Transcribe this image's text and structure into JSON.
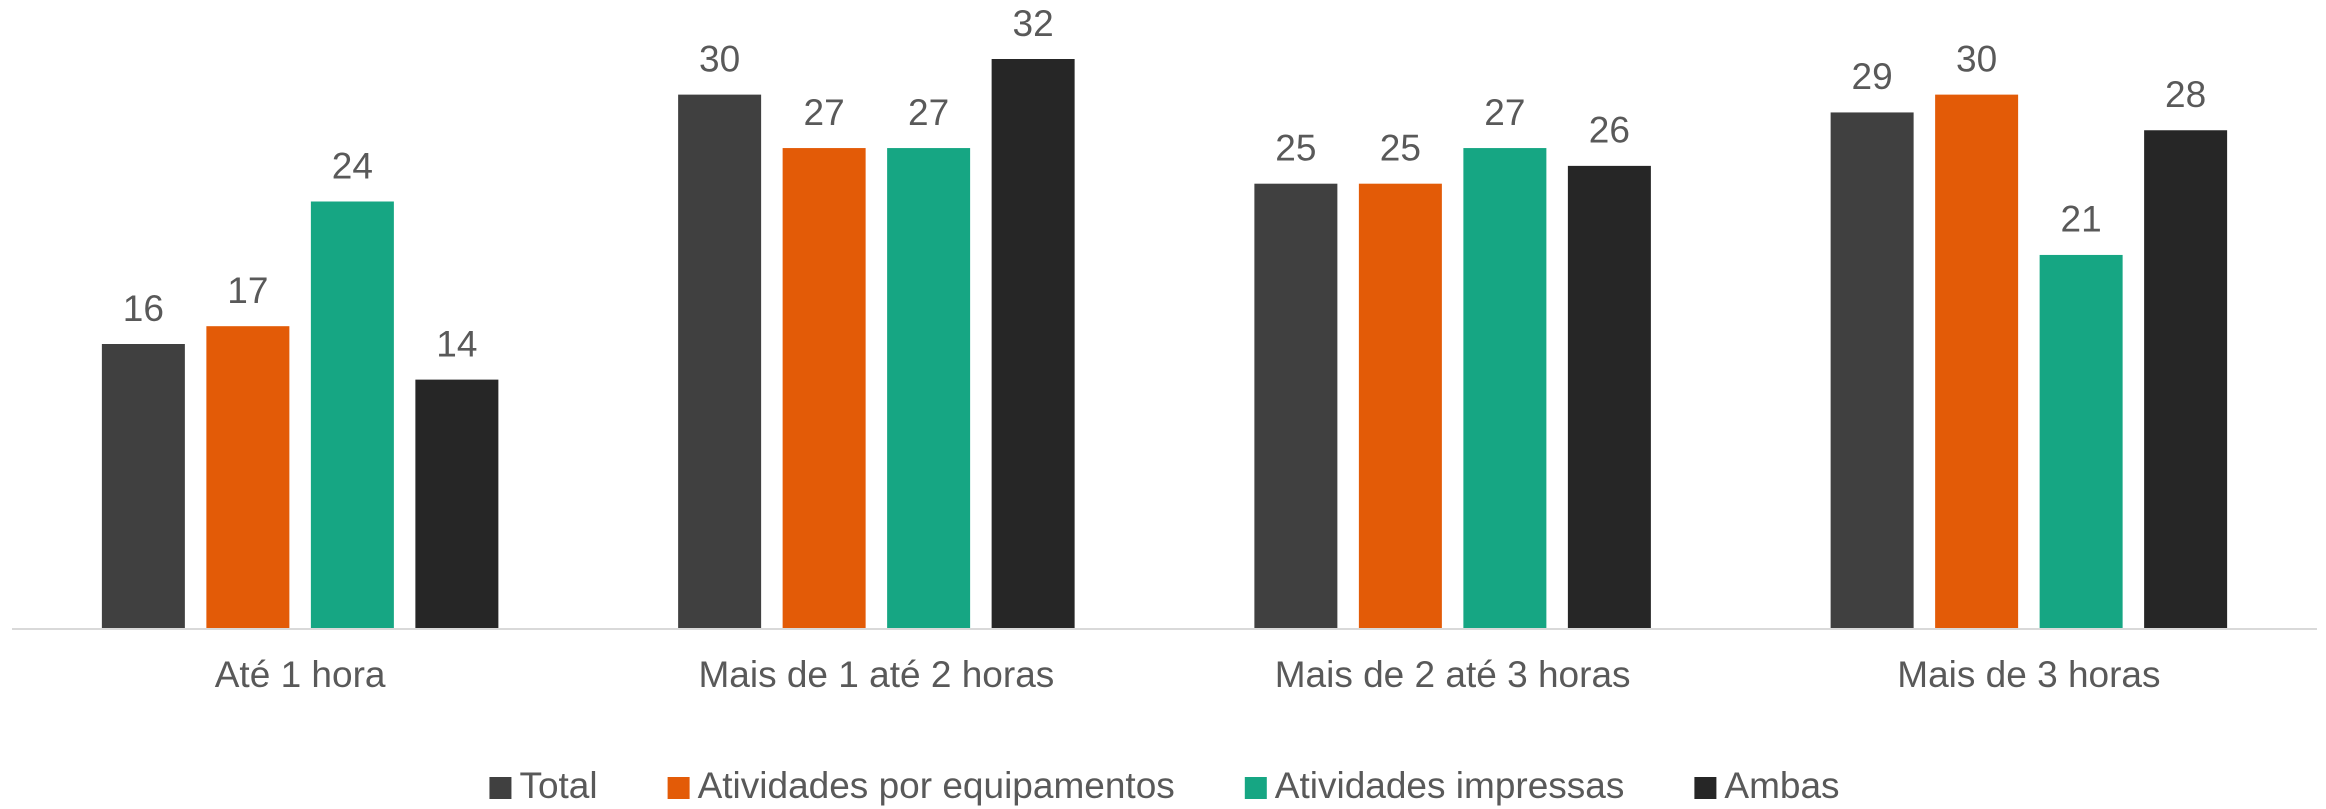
{
  "chart_data": {
    "type": "bar",
    "categories": [
      "Até 1 hora",
      "Mais de 1 até 2 horas",
      "Mais de 2 até 3 horas",
      "Mais de 3 horas"
    ],
    "series": [
      {
        "name": "Total",
        "color": "#404040",
        "values": [
          16,
          30,
          25,
          29
        ]
      },
      {
        "name": "Atividades por equipamentos",
        "color": "#e35b07",
        "values": [
          17,
          27,
          25,
          30
        ]
      },
      {
        "name": "Atividades impressas",
        "color": "#16a683",
        "values": [
          24,
          27,
          27,
          21
        ]
      },
      {
        "name": "Ambas",
        "color": "#262626",
        "values": [
          14,
          32,
          26,
          28
        ]
      }
    ],
    "legend": "bottom"
  }
}
